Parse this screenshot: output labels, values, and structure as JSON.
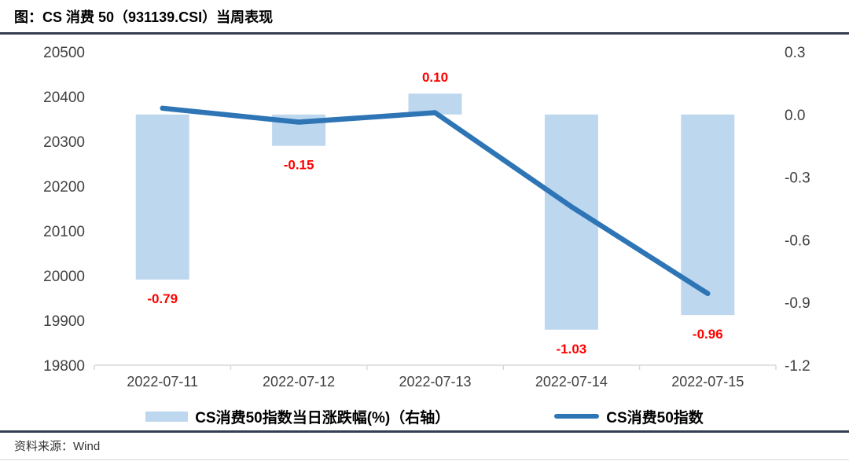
{
  "page": {
    "title": "图：CS 消费 50（931139.CSI）当周表现",
    "source": "资料来源：Wind"
  },
  "colors": {
    "bar_fill": "#BDD7EE",
    "line_stroke": "#2E75B6",
    "data_label": "#FF0000",
    "divider": "#333F50",
    "axis_line": "#D9D9D9",
    "axis_text": "#404040"
  },
  "chart_data": {
    "type": "bar",
    "subtype": "dual-axis bar + line combo",
    "title": "图：CS 消费 50（931139.CSI）当周表现",
    "categories": [
      "2022-07-11",
      "2022-07-12",
      "2022-07-13",
      "2022-07-14",
      "2022-07-15"
    ],
    "series": [
      {
        "name": "CS消费50指数当日涨跌幅(%)（右轴）",
        "type": "bar",
        "axis": "right",
        "values": [
          -0.79,
          -0.15,
          0.1,
          -1.03,
          -0.96
        ],
        "value_labels": [
          "-0.79",
          "-0.15",
          "0.10",
          "-1.03",
          "-0.96"
        ]
      },
      {
        "name": "CS消费50指数",
        "type": "line",
        "axis": "left",
        "values": [
          20374,
          20343,
          20364,
          20154,
          19960
        ]
      }
    ],
    "left_axis": {
      "min": 19800,
      "max": 20500,
      "step": 100,
      "tick_labels": [
        "20500",
        "20400",
        "20300",
        "20200",
        "20100",
        "20000",
        "19900",
        "19800"
      ]
    },
    "right_axis": {
      "min": -1.2,
      "max": 0.3,
      "step": 0.3,
      "tick_labels": [
        "0.3",
        "0.0",
        "-0.3",
        "-0.6",
        "-0.9",
        "-1.2"
      ]
    },
    "grid": false,
    "legend_position": "bottom",
    "xlabel": "",
    "ylabel_left": "",
    "ylabel_right": ""
  }
}
